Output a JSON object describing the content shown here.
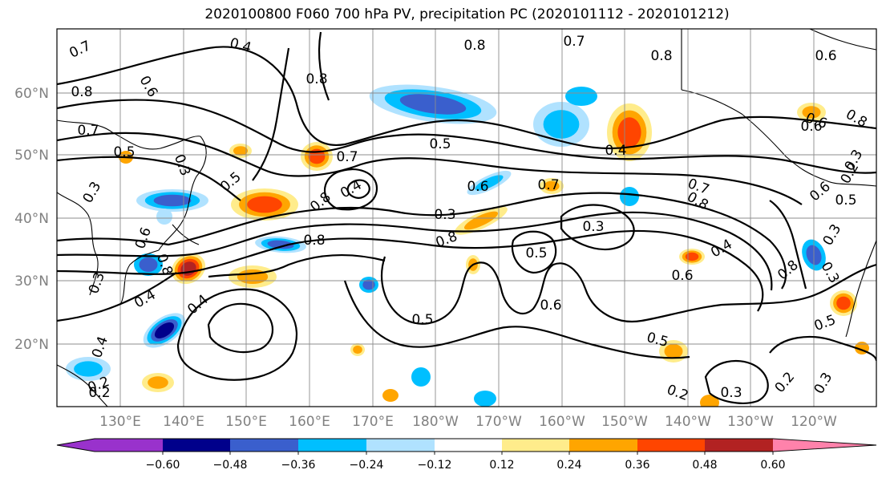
{
  "title": "2020100800 F060 700 hPa PV, precipitation PC (2020101112 - 2020101212)",
  "lat_labels": [
    "60°N",
    "50°N",
    "40°N",
    "30°N",
    "20°N"
  ],
  "lon_labels": [
    "130°E",
    "140°E",
    "150°E",
    "160°E",
    "170°E",
    "180°W",
    "170°W",
    "160°W",
    "150°W",
    "140°W",
    "130°W",
    "120°W"
  ],
  "colorbar": {
    "ticks": [
      "−0.60",
      "−0.48",
      "−0.36",
      "−0.24",
      "−0.12",
      "0.12",
      "0.24",
      "0.36",
      "0.48",
      "0.60"
    ],
    "colors": [
      "#9932cc",
      "#00008b",
      "#3a5fcd",
      "#00bfff",
      "#b0e2ff",
      "#ffffff",
      "#ffec8b",
      "#ffa500",
      "#ff4500",
      "#b22222",
      "#ff82ab"
    ]
  },
  "contour_labels": [
    "0.7",
    "0.4",
    "0.8",
    "0.7",
    "0.8",
    "0.6",
    "0.8",
    "0.6",
    "0.7",
    "0.8",
    "0.8",
    "0.6",
    "0.8",
    "0.7",
    "0.5",
    "0.3",
    "0.3",
    "0.4",
    "0.5",
    "0.5",
    "0.7",
    "0.4",
    "0.5",
    "0.6",
    "0.8",
    "0.4",
    "0.7",
    "0.8",
    "0.6",
    "0.8",
    "0.3",
    "0.3",
    "0.3",
    "0.5",
    "0.6",
    "0.4",
    "0.6",
    "0.3",
    "0.4",
    "0.5",
    "0.5",
    "0.4",
    "0.2",
    "0.3",
    "0.2",
    "0.3",
    "0.2",
    "0.2",
    "0.6",
    "0.8",
    "0.2",
    "0.3",
    "0.8",
    "0.5",
    "0.6",
    "0.3"
  ]
}
